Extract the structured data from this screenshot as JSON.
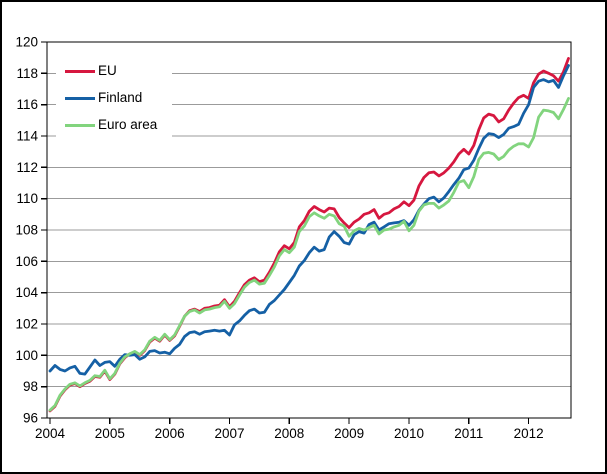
{
  "chart_data": {
    "type": "line",
    "title": "",
    "xlabel": "",
    "ylabel": "",
    "ylim": [
      96,
      120
    ],
    "y_ticks": [
      96,
      98,
      100,
      102,
      104,
      106,
      108,
      110,
      112,
      114,
      116,
      118,
      120
    ],
    "x_tick_labels": [
      "2004",
      "2005",
      "2006",
      "2007",
      "2008",
      "2009",
      "2010",
      "2011",
      "2012"
    ],
    "x_start_month": "2004-01",
    "x_end_month": "2012-09",
    "grid": "horizontal",
    "legend_position": "top-left-inside",
    "axis_color": "#000000",
    "gridline_color": "#9b9b9b",
    "background_color": "#ffffff",
    "series": [
      {
        "name": "EU",
        "color": "#d6173f",
        "values": [
          96.45,
          96.75,
          97.4,
          97.8,
          98.1,
          98.2,
          98.0,
          98.2,
          98.35,
          98.65,
          98.6,
          99.0,
          98.45,
          98.8,
          99.45,
          99.85,
          100.1,
          100.2,
          100.0,
          100.3,
          100.85,
          101.1,
          100.9,
          101.3,
          100.95,
          101.25,
          101.85,
          102.5,
          102.85,
          102.95,
          102.8,
          103.0,
          103.05,
          103.15,
          103.2,
          103.55,
          103.1,
          103.45,
          104.0,
          104.5,
          104.8,
          104.95,
          104.7,
          104.8,
          105.3,
          105.9,
          106.6,
          107.0,
          106.8,
          107.2,
          108.2,
          108.6,
          109.2,
          109.5,
          109.3,
          109.15,
          109.4,
          109.35,
          108.8,
          108.45,
          108.15,
          108.5,
          108.7,
          109.0,
          109.1,
          109.3,
          108.75,
          109.0,
          109.1,
          109.35,
          109.5,
          109.8,
          109.55,
          109.9,
          110.8,
          111.35,
          111.65,
          111.7,
          111.45,
          111.65,
          111.95,
          112.35,
          112.85,
          113.15,
          112.85,
          113.4,
          114.4,
          115.15,
          115.4,
          115.3,
          114.9,
          115.1,
          115.65,
          116.1,
          116.45,
          116.6,
          116.4,
          117.4,
          117.95,
          118.15,
          118.0,
          117.85,
          117.5,
          118.1,
          118.95
        ]
      },
      {
        "name": "Finland",
        "color": "#1560a5",
        "values": [
          99.0,
          99.35,
          99.1,
          99.0,
          99.2,
          99.3,
          98.85,
          98.8,
          99.25,
          99.7,
          99.35,
          99.55,
          99.6,
          99.3,
          99.75,
          100.05,
          100.0,
          100.05,
          99.75,
          99.9,
          100.25,
          100.3,
          100.15,
          100.2,
          100.1,
          100.45,
          100.7,
          101.2,
          101.45,
          101.5,
          101.35,
          101.5,
          101.55,
          101.6,
          101.55,
          101.6,
          101.3,
          101.95,
          102.2,
          102.55,
          102.85,
          102.95,
          102.7,
          102.75,
          103.25,
          103.5,
          103.85,
          104.2,
          104.65,
          105.1,
          105.7,
          106.05,
          106.55,
          106.9,
          106.65,
          106.75,
          107.55,
          107.9,
          107.6,
          107.2,
          107.1,
          107.7,
          107.9,
          107.8,
          108.35,
          108.5,
          108.0,
          108.2,
          108.4,
          108.45,
          108.5,
          108.6,
          108.3,
          108.65,
          109.25,
          109.65,
          110.0,
          110.1,
          109.8,
          110.05,
          110.45,
          110.9,
          111.3,
          111.85,
          111.95,
          112.45,
          113.2,
          113.85,
          114.15,
          114.1,
          113.9,
          114.1,
          114.5,
          114.6,
          114.75,
          115.45,
          116.0,
          117.1,
          117.5,
          117.6,
          117.45,
          117.55,
          117.1,
          117.85,
          118.5
        ]
      },
      {
        "name": "Euro area",
        "color": "#82d47e",
        "values": [
          96.5,
          96.8,
          97.45,
          97.85,
          98.15,
          98.25,
          98.05,
          98.25,
          98.4,
          98.7,
          98.65,
          99.05,
          98.5,
          98.85,
          99.5,
          99.9,
          100.1,
          100.25,
          100.05,
          100.35,
          100.9,
          101.15,
          100.95,
          101.35,
          101.0,
          101.3,
          101.9,
          102.5,
          102.8,
          102.9,
          102.7,
          102.9,
          102.95,
          103.05,
          103.1,
          103.45,
          103.0,
          103.3,
          103.85,
          104.35,
          104.65,
          104.8,
          104.55,
          104.6,
          105.1,
          105.65,
          106.35,
          106.75,
          106.55,
          106.9,
          107.9,
          108.25,
          108.85,
          109.1,
          108.9,
          108.75,
          109.0,
          108.9,
          108.4,
          108.25,
          107.6,
          107.95,
          108.1,
          108.0,
          108.15,
          108.3,
          107.75,
          108.0,
          108.05,
          108.2,
          108.3,
          108.55,
          107.95,
          108.3,
          109.2,
          109.6,
          109.7,
          109.7,
          109.4,
          109.6,
          109.85,
          110.4,
          111.05,
          111.15,
          110.7,
          111.4,
          112.5,
          112.9,
          112.95,
          112.85,
          112.5,
          112.7,
          113.1,
          113.35,
          113.5,
          113.5,
          113.3,
          113.9,
          115.2,
          115.65,
          115.6,
          115.5,
          115.1,
          115.7,
          116.4
        ]
      }
    ]
  }
}
